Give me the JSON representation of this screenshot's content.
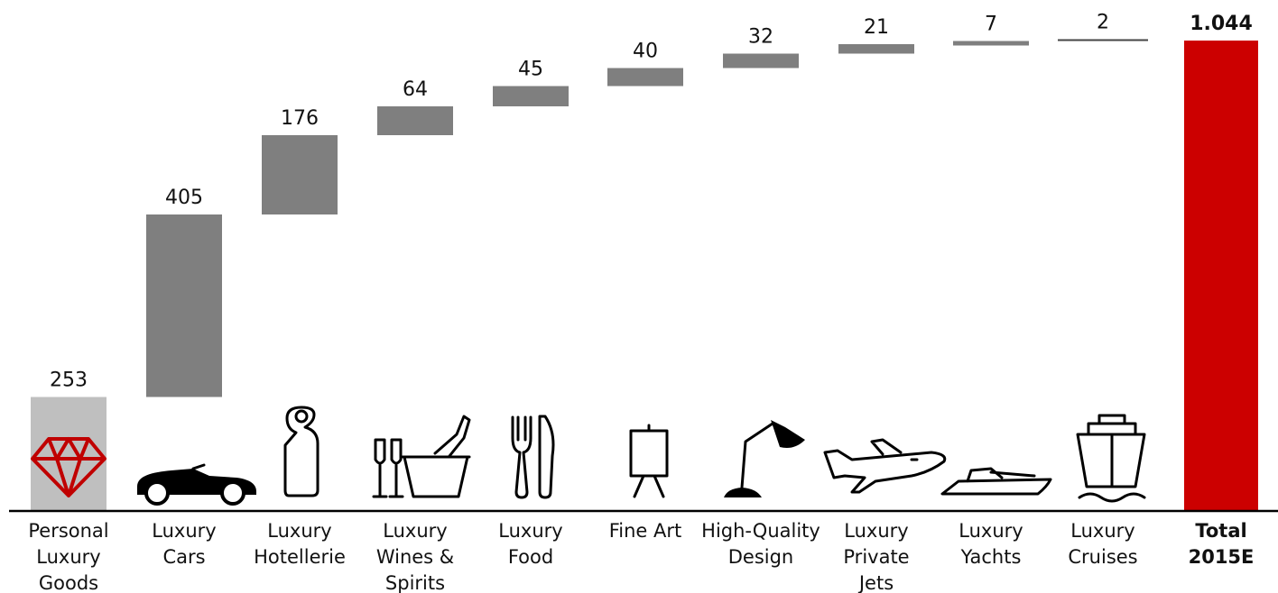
{
  "chart_data": {
    "type": "bar",
    "subtype": "waterfall",
    "title": "",
    "xlabel": "",
    "ylabel": "",
    "ylim": [
      0,
      1044
    ],
    "grid": false,
    "categories": [
      [
        "Personal",
        "Luxury",
        "Goods"
      ],
      [
        "Luxury",
        "Cars"
      ],
      [
        "Luxury",
        "Hotellerie"
      ],
      [
        "Luxury",
        "Wines &",
        "Spirits"
      ],
      [
        "Luxury",
        "Food"
      ],
      [
        "Fine Art"
      ],
      [
        "High-Quality",
        "Design"
      ],
      [
        "Luxury",
        "Private",
        "Jets"
      ],
      [
        "Luxury",
        "Yachts"
      ],
      [
        "Luxury",
        "Cruises"
      ],
      [
        "Total",
        "2015E"
      ]
    ],
    "values": [
      253,
      405,
      176,
      64,
      45,
      40,
      32,
      21,
      7,
      2,
      1044
    ],
    "value_labels": [
      "253",
      "405",
      "176",
      "64",
      "45",
      "40",
      "32",
      "21",
      "7",
      "2",
      "1.044"
    ],
    "bar_kinds": [
      "base",
      "delta",
      "delta",
      "delta",
      "delta",
      "delta",
      "delta",
      "delta",
      "delta",
      "delta",
      "total"
    ],
    "icons": [
      "diamond-icon",
      "car-icon",
      "door-hanger-icon",
      "wine-bucket-icon",
      "fork-knife-icon",
      "easel-icon",
      "desk-lamp-icon",
      "airplane-icon",
      "yacht-icon",
      "cruise-ship-icon",
      ""
    ],
    "colors": {
      "base": "#bfbfbf",
      "delta": "#7f7f7f",
      "total": "#cc0000",
      "icon": "#000000",
      "diamond": "#c00000"
    }
  }
}
